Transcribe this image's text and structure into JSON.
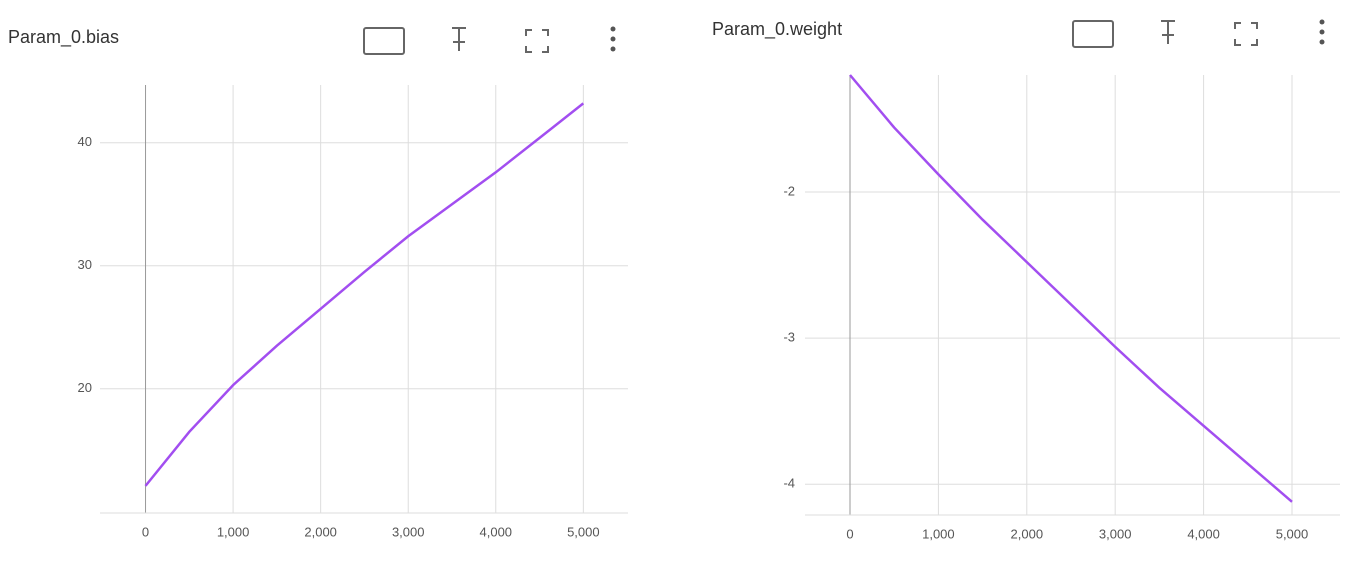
{
  "chart_data": [
    {
      "type": "line",
      "title": "Param_0.bias",
      "x": [
        0,
        500,
        1000,
        1500,
        2000,
        2500,
        3000,
        3500,
        4000,
        4500,
        5000
      ],
      "series": [
        {
          "name": "Param_0.bias",
          "color": "#a24ef0",
          "values": [
            12.1,
            16.5,
            20.3,
            23.5,
            26.5,
            29.5,
            32.4,
            35.0,
            37.6,
            40.4,
            43.2
          ]
        }
      ],
      "xlim": [
        -520,
        5510
      ],
      "ylim": [
        9.9,
        44.7
      ],
      "xticks": [
        0,
        {
          "value": 1000,
          "label": "1,000"
        },
        {
          "value": 2000,
          "label": "2,000"
        },
        {
          "value": 3000,
          "label": "3,000"
        },
        {
          "value": 4000,
          "label": "4,000"
        },
        {
          "value": 5000,
          "label": "5,000"
        }
      ],
      "yticks": [
        20,
        30,
        40
      ],
      "grid": true
    },
    {
      "type": "line",
      "title": "Param_0.weight",
      "x": [
        0,
        500,
        1000,
        1500,
        2000,
        2500,
        3000,
        3500,
        4000,
        4500,
        5000
      ],
      "series": [
        {
          "name": "Param_0.weight",
          "color": "#a24ef0",
          "values": [
            -1.2,
            -1.56,
            -1.88,
            -2.19,
            -2.48,
            -2.77,
            -3.06,
            -3.34,
            -3.6,
            -3.86,
            -4.12
          ]
        }
      ],
      "xlim": [
        -509,
        5543
      ],
      "ylim": [
        -4.21,
        -1.2
      ],
      "xticks": [
        0,
        {
          "value": 1000,
          "label": "1,000"
        },
        {
          "value": 2000,
          "label": "2,000"
        },
        {
          "value": 3000,
          "label": "3,000"
        },
        {
          "value": 4000,
          "label": "4,000"
        },
        {
          "value": 5000,
          "label": "5,000"
        }
      ],
      "yticks": [
        -4,
        -3,
        -2
      ],
      "grid": true
    }
  ]
}
